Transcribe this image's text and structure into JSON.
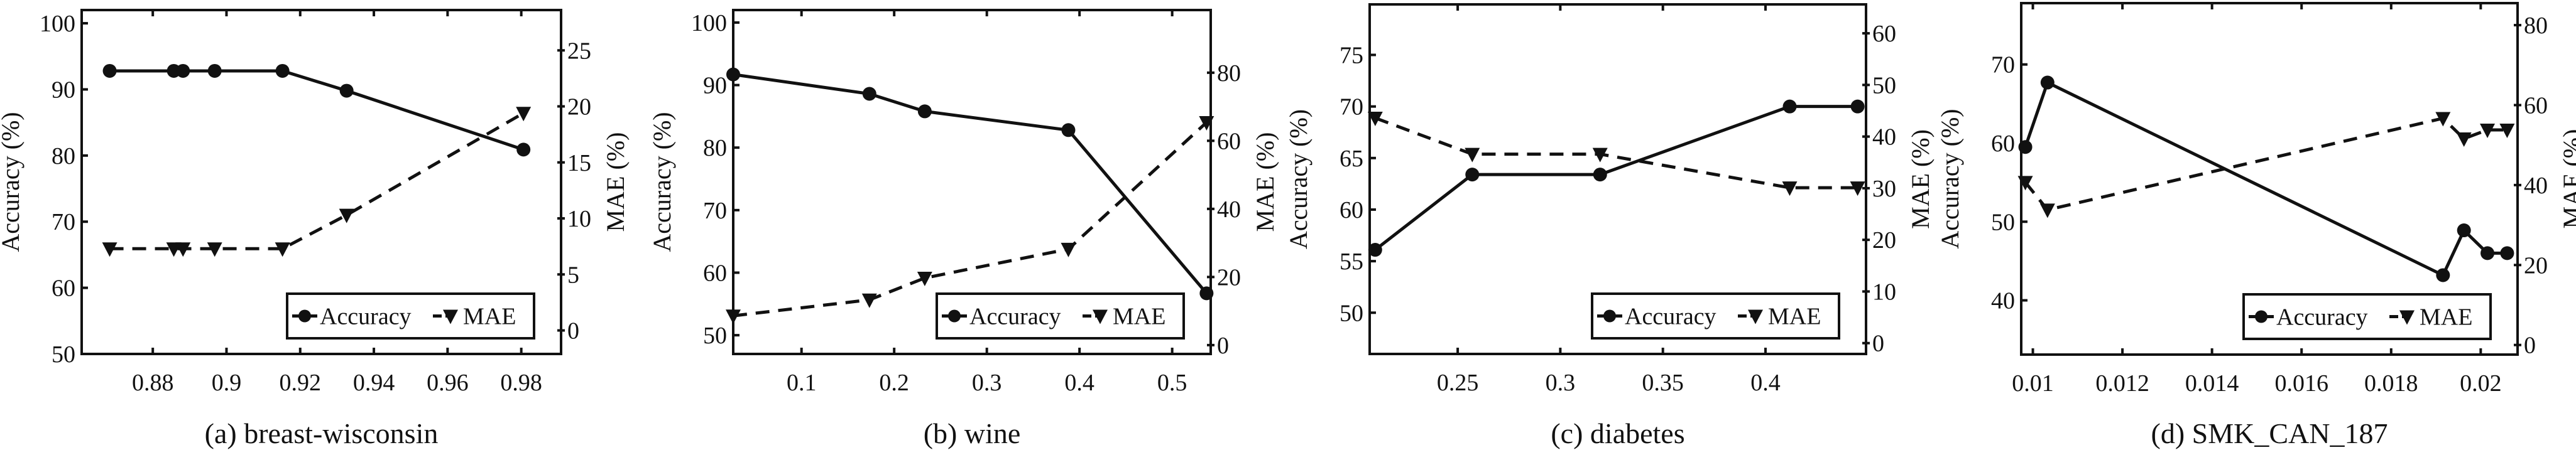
{
  "chart_data": [
    {
      "type": "line",
      "caption": "(a) breast-wisconsin",
      "ylabel": "Accuracy (%)",
      "y2label": "MAE (%)",
      "xlim": [
        0.8607,
        0.9908
      ],
      "ylim": [
        50,
        102
      ],
      "y2lim": [
        -2.1,
        28.6
      ],
      "xticks": [
        0.88,
        0.9,
        0.92,
        0.94,
        0.96,
        0.98
      ],
      "xtick_labels": [
        "0.88",
        "0.9",
        "0.92",
        "0.94",
        "0.96",
        "0.98"
      ],
      "yticks": [
        50,
        60,
        70,
        80,
        90,
        100
      ],
      "ytick_labels": [
        "50",
        "60",
        "70",
        "80",
        "90",
        "100"
      ],
      "y2ticks": [
        0,
        5,
        10,
        15,
        20,
        25
      ],
      "y2tick_labels": [
        "0",
        "5",
        "10",
        "15",
        "20",
        "25"
      ],
      "x": [
        0.8683,
        0.8857,
        0.8882,
        0.8968,
        0.9152,
        0.9326,
        0.9806
      ],
      "series": [
        {
          "name": "Accuracy",
          "axis": "left",
          "style": "solid-circle",
          "values": [
            92.8,
            92.8,
            92.8,
            92.8,
            92.8,
            89.8,
            80.9
          ]
        },
        {
          "name": "MAE",
          "axis": "right",
          "style": "dashed-triangle",
          "values": [
            7.3,
            7.3,
            7.3,
            7.3,
            7.3,
            10.3,
            19.4
          ]
        }
      ],
      "legend": {
        "position": "bottom-right",
        "labels": [
          "Accuracy",
          "MAE"
        ]
      }
    },
    {
      "type": "line",
      "caption": "(b) wine",
      "ylabel": "Accuracy (%)",
      "y2label": "MAE (%)",
      "xlim": [
        0.0263,
        0.5416
      ],
      "ylim": [
        47,
        102
      ],
      "y2lim": [
        -2.6,
        98.4
      ],
      "xticks": [
        0.1,
        0.2,
        0.3,
        0.4,
        0.5
      ],
      "xtick_labels": [
        "0.1",
        "0.2",
        "0.3",
        "0.4",
        "0.5"
      ],
      "yticks": [
        50,
        60,
        70,
        80,
        90,
        100
      ],
      "ytick_labels": [
        "50",
        "60",
        "70",
        "80",
        "90",
        "100"
      ],
      "y2ticks": [
        0,
        20,
        40,
        60,
        80
      ],
      "y2tick_labels": [
        "0",
        "20",
        "40",
        "60",
        "80"
      ],
      "x": [
        0.0263,
        0.1733,
        0.233,
        0.388,
        0.5371
      ],
      "series": [
        {
          "name": "Accuracy",
          "axis": "left",
          "style": "solid-circle",
          "values": [
            91.7,
            88.6,
            85.8,
            82.8,
            56.7
          ]
        },
        {
          "name": "MAE",
          "axis": "right",
          "style": "dashed-triangle",
          "values": [
            8.6,
            13.3,
            19.7,
            28.2,
            65.4
          ]
        }
      ],
      "legend": {
        "position": "bottom-right",
        "labels": [
          "Accuracy",
          "MAE"
        ]
      }
    },
    {
      "type": "line",
      "caption": "(c) diabetes",
      "ylabel": "Accuracy (%)",
      "y2label": "MAE (%)",
      "xlim": [
        0.2071,
        0.449
      ],
      "ylim": [
        46.0,
        79.9
      ],
      "y2lim": [
        -2.1,
        65.6
      ],
      "xticks": [
        0.25,
        0.3,
        0.35,
        0.4
      ],
      "xtick_labels": [
        "0.25",
        "0.3",
        "0.35",
        "0.4"
      ],
      "yticks": [
        50,
        55,
        60,
        65,
        70,
        75
      ],
      "ytick_labels": [
        "50",
        "55",
        "60",
        "65",
        "70",
        "75"
      ],
      "y2ticks": [
        0,
        10,
        20,
        30,
        40,
        50,
        60
      ],
      "y2tick_labels": [
        "0",
        "10",
        "20",
        "30",
        "40",
        "50",
        "60"
      ],
      "x": [
        0.2098,
        0.2571,
        0.3194,
        0.4118,
        0.4449
      ],
      "series": [
        {
          "name": "Accuracy",
          "axis": "left",
          "style": "solid-circle",
          "values": [
            56.1,
            63.4,
            63.4,
            70.0,
            70.0
          ]
        },
        {
          "name": "MAE",
          "axis": "right",
          "style": "dashed-triangle",
          "values": [
            43.6,
            36.6,
            36.6,
            30.1,
            30.1
          ]
        }
      ],
      "legend": {
        "position": "bottom-right",
        "labels": [
          "Accuracy",
          "MAE"
        ]
      }
    },
    {
      "type": "line",
      "caption": "(d) SMK_CAN_187",
      "ylabel": "Accuracy (%)",
      "y2label": "MAE (%)",
      "xlim": [
        0.00974,
        0.020823
      ],
      "ylim": [
        33.1,
        77.8
      ],
      "y2lim": [
        -2.4,
        85.5
      ],
      "xticks": [
        0.01,
        0.012,
        0.014,
        0.016,
        0.018,
        0.02
      ],
      "xtick_labels": [
        "0.01",
        "0.012",
        "0.014",
        "0.016",
        "0.018",
        "0.02"
      ],
      "yticks": [
        40,
        50,
        60,
        70
      ],
      "ytick_labels": [
        "40",
        "50",
        "60",
        "70"
      ],
      "y2ticks": [
        0,
        20,
        40,
        60,
        80
      ],
      "y2tick_labels": [
        "0",
        "20",
        "40",
        "60",
        "80"
      ],
      "x": [
        0.009832,
        0.010327,
        0.019158,
        0.019626,
        0.02015,
        0.02059
      ],
      "series": [
        {
          "name": "Accuracy",
          "axis": "left",
          "style": "solid-circle",
          "values": [
            59.5,
            67.7,
            43.2,
            48.9,
            46.0,
            46.0
          ]
        },
        {
          "name": "MAE",
          "axis": "right",
          "style": "dashed-triangle",
          "values": [
            40.7,
            33.8,
            56.7,
            51.6,
            53.8,
            53.8
          ]
        }
      ],
      "legend": {
        "position": "bottom-right",
        "labels": [
          "Accuracy",
          "MAE"
        ]
      }
    }
  ]
}
